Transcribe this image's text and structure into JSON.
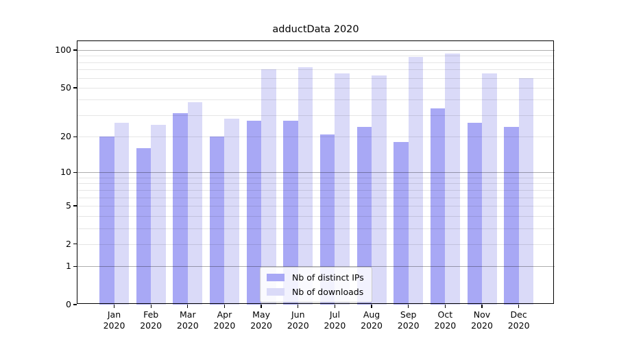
{
  "chart_data": {
    "type": "bar",
    "title": "adductData 2020",
    "categories": [
      "Jan",
      "Feb",
      "Mar",
      "Apr",
      "May",
      "Jun",
      "Jul",
      "Aug",
      "Sep",
      "Oct",
      "Nov",
      "Dec"
    ],
    "category_year": "2020",
    "series": [
      {
        "name": "Nb of distinct IPs",
        "color": "#a8a8f5",
        "values": [
          20,
          16,
          31,
          20,
          27,
          27,
          21,
          24,
          18,
          34,
          26,
          24
        ]
      },
      {
        "name": "Nb of downloads",
        "color": "#dadaf8",
        "values": [
          26,
          25,
          38,
          28,
          70,
          73,
          65,
          63,
          88,
          94,
          65,
          60
        ]
      }
    ],
    "y_scale": "log1p",
    "ylim": [
      0,
      119
    ],
    "y_labeled_ticks": [
      0,
      1,
      2,
      5,
      10,
      20,
      50,
      100
    ],
    "y_major_grid_values": [
      1,
      10,
      100
    ],
    "y_minor_grid_values": [
      2,
      3,
      4,
      5,
      6,
      7,
      8,
      9,
      20,
      30,
      40,
      50,
      60,
      70,
      80,
      90
    ],
    "grid": true,
    "legend_position": "inside-bottom-center",
    "xlabel": "",
    "ylabel": ""
  }
}
